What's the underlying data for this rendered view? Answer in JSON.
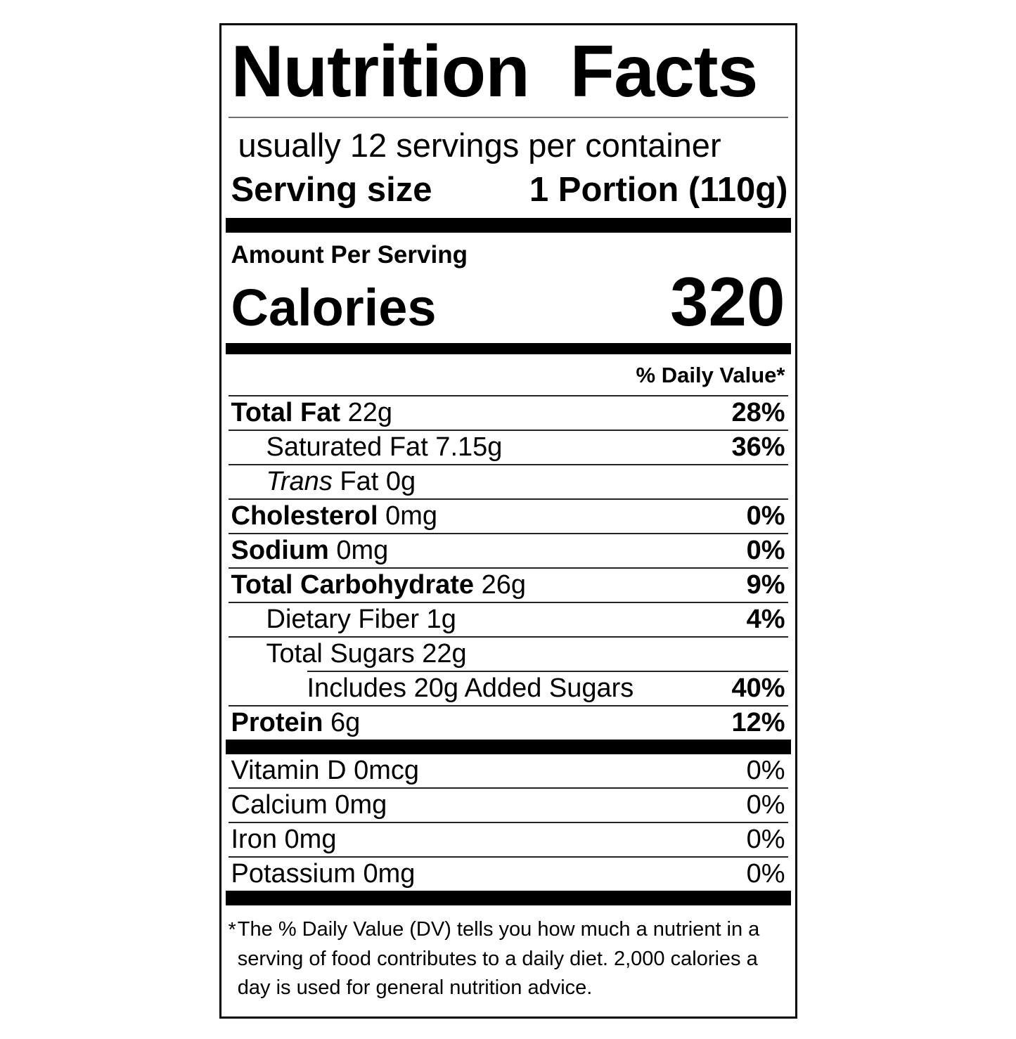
{
  "colors": {
    "background": "#ffffff",
    "text": "#000000",
    "bar": "#000000",
    "hairline": "#242424"
  },
  "label": {
    "title": "Nutrition Facts",
    "servings_line": "usually 12 servings per container",
    "serving_size_label": "Serving size",
    "serving_size_value": "1 Portion (110g)",
    "amount_per_serving": "Amount Per Serving",
    "calories_label": "Calories",
    "calories_value": "320",
    "daily_value_header": "% Daily Value*",
    "nutrients": [
      {
        "name": "Total Fat",
        "bold_name": true,
        "amount": "22g",
        "dv": "28%",
        "indent": 0
      },
      {
        "name": "Saturated Fat",
        "amount": "7.15g",
        "dv": "36%",
        "indent": 1
      },
      {
        "name": "Trans",
        "italic_name": true,
        "amount": "Fat 0g",
        "dv": "",
        "indent": 1
      },
      {
        "name": "Cholesterol",
        "bold_name": true,
        "amount": "0mg",
        "dv": "0%",
        "indent": 0
      },
      {
        "name": "Sodium",
        "bold_name": true,
        "amount": "0mg",
        "dv": "0%",
        "indent": 0
      },
      {
        "name": "Total Carbohydrate",
        "bold_name": true,
        "amount": "26g",
        "dv": "9%",
        "indent": 0
      },
      {
        "name": "Dietary Fiber",
        "amount": "1g",
        "dv": "4%",
        "indent": 1
      },
      {
        "name": "Total Sugars",
        "amount": "22g",
        "dv": "",
        "indent": 1
      },
      {
        "name": "Includes 20g Added Sugars",
        "amount": "",
        "dv": "40%",
        "indent": 2,
        "divider_above_indent": 122
      },
      {
        "name": "Protein",
        "bold_name": true,
        "amount": "6g",
        "dv": "12%",
        "indent": 0
      }
    ],
    "vitamins": [
      {
        "name": "Vitamin D",
        "amount": "0mcg",
        "dv": "0%"
      },
      {
        "name": "Calcium",
        "amount": "0mg",
        "dv": "0%"
      },
      {
        "name": "Iron",
        "amount": "0mg",
        "dv": "0%"
      },
      {
        "name": "Potassium",
        "amount": "0mg",
        "dv": "0%"
      }
    ],
    "footnote_marker": "*",
    "footnote_text": "The % Daily Value (DV) tells you how much a nutrient in a serving of food contributes to a daily diet. 2,000 calories a day is used for general nutrition advice."
  }
}
